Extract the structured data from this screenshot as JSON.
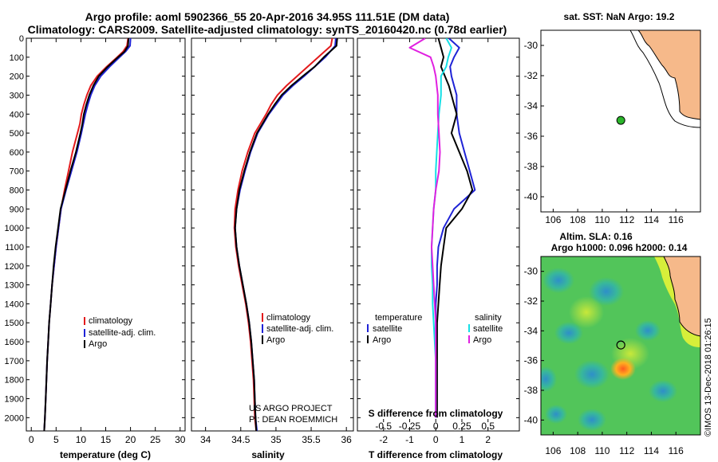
{
  "header": {
    "title_line1": "Argo profile: aoml 5902366_55 20-Apr-2016 34.95S 111.51E (DM data)",
    "title_line2": "Climatology: CARS2009. Satellite-adjusted climatology: synTS_20160420.nc (0.78d earlier)"
  },
  "credits": {
    "project": "US ARGO PROJECT",
    "pi": "PI: DEAN ROEMMICH",
    "stamp": "©IMOS 13-Dec-2018 01:26:15"
  },
  "colors": {
    "climatology": "#e31a1c",
    "satellite": "#1f23d6",
    "argo": "#000000",
    "sal_satellite": "#16e0e6",
    "sal_argo": "#e020e0",
    "land": "#f6b98a",
    "float_marker": "#2bb52b"
  },
  "chart_data": [
    {
      "id": "temperature",
      "type": "line",
      "xlabel": "temperature (deg C)",
      "ylabel": "",
      "xlim": [
        -1,
        31
      ],
      "ylim": [
        2070,
        0
      ],
      "xticks": [
        "0",
        "5",
        "10",
        "15",
        "20",
        "25",
        "30"
      ],
      "yticks": [
        "0",
        "100",
        "200",
        "300",
        "400",
        "500",
        "600",
        "700",
        "800",
        "900",
        "1000",
        "1100",
        "1200",
        "1300",
        "1400",
        "1500",
        "1600",
        "1700",
        "1800",
        "1900",
        "2000"
      ],
      "legend": [
        "climatology",
        "satellite-adj. clim.",
        "Argo"
      ],
      "legend_position": "lower-right",
      "series": [
        {
          "name": "climatology",
          "color": "#e31a1c",
          "x": [
            19.5,
            19.3,
            18.5,
            17.3,
            15.2,
            13.3,
            12.0,
            11.2,
            10.6,
            10.1,
            9.8,
            9.3,
            8.3,
            7.5,
            6.7,
            6.0,
            5.5,
            5.0,
            4.6,
            4.2,
            3.9,
            3.6,
            3.4,
            3.2,
            3.05,
            2.9,
            2.75,
            2.6
          ],
          "y": [
            0,
            40,
            70,
            100,
            150,
            200,
            250,
            300,
            350,
            400,
            450,
            500,
            600,
            700,
            800,
            900,
            1000,
            1100,
            1200,
            1300,
            1400,
            1500,
            1600,
            1700,
            1800,
            1900,
            2000,
            2070
          ]
        },
        {
          "name": "satellite-adj. clim.",
          "color": "#1f23d6",
          "x": [
            20.0,
            19.9,
            19.0,
            17.8,
            15.8,
            14.0,
            12.8,
            12.0,
            11.4,
            10.9,
            10.5,
            10.1,
            9.2,
            8.1,
            7.0,
            6.0,
            5.5,
            5.0,
            4.6,
            4.2,
            3.9,
            3.6,
            3.4,
            3.2,
            3.05,
            2.9,
            2.75,
            2.6
          ],
          "y": [
            0,
            40,
            70,
            100,
            150,
            200,
            250,
            300,
            350,
            400,
            450,
            500,
            600,
            700,
            800,
            900,
            1000,
            1100,
            1200,
            1300,
            1400,
            1500,
            1600,
            1700,
            1800,
            1900,
            2000,
            2070
          ]
        },
        {
          "name": "Argo",
          "color": "#000000",
          "x": [
            19.6,
            19.5,
            18.8,
            17.5,
            15.4,
            13.6,
            12.5,
            11.7,
            11.1,
            10.6,
            10.3,
            9.9,
            9.0,
            7.9,
            6.9,
            5.9,
            5.4,
            4.9,
            4.5,
            4.2,
            3.9,
            3.6,
            3.4,
            3.2,
            3.05,
            2.9,
            2.75,
            2.6
          ],
          "y": [
            0,
            40,
            70,
            100,
            150,
            200,
            250,
            300,
            350,
            400,
            450,
            500,
            600,
            700,
            800,
            900,
            1000,
            1100,
            1200,
            1300,
            1400,
            1500,
            1600,
            1700,
            1800,
            1900,
            2000,
            2070
          ]
        }
      ]
    },
    {
      "id": "salinity",
      "type": "line",
      "xlabel": "salinity",
      "xlim": [
        33.8,
        36.1
      ],
      "ylim": [
        2070,
        0
      ],
      "xticks": [
        "34",
        "34.5",
        "35",
        "35.5",
        "36"
      ],
      "legend": [
        "climatology",
        "satellite-adj. clim.",
        "Argo"
      ],
      "legend_position": "lower-right",
      "series": [
        {
          "name": "climatology",
          "color": "#e31a1c",
          "x": [
            35.8,
            35.78,
            35.6,
            35.45,
            35.3,
            35.15,
            35.02,
            34.93,
            34.86,
            34.78,
            34.7,
            34.6,
            34.52,
            34.46,
            34.42,
            34.41,
            34.43,
            34.47,
            34.52,
            34.57,
            34.61,
            34.64,
            34.66,
            34.68,
            34.69,
            34.7,
            34.72
          ],
          "y": [
            0,
            40,
            100,
            150,
            200,
            250,
            300,
            350,
            400,
            450,
            500,
            600,
            700,
            800,
            900,
            1000,
            1100,
            1200,
            1300,
            1400,
            1500,
            1600,
            1700,
            1800,
            1900,
            2000,
            2070
          ]
        },
        {
          "name": "satellite-adj. clim.",
          "color": "#1f23d6",
          "x": [
            35.85,
            35.84,
            35.7,
            35.55,
            35.4,
            35.24,
            35.1,
            35.0,
            34.9,
            34.82,
            34.74,
            34.64,
            34.56,
            34.49,
            34.44,
            34.42,
            34.44,
            34.48,
            34.53,
            34.58,
            34.62,
            34.65,
            34.67,
            34.69,
            34.7,
            34.71,
            34.73
          ],
          "y": [
            0,
            40,
            100,
            150,
            200,
            250,
            300,
            350,
            400,
            450,
            500,
            600,
            700,
            800,
            900,
            1000,
            1100,
            1200,
            1300,
            1400,
            1500,
            1600,
            1700,
            1800,
            1900,
            2000,
            2070
          ]
        },
        {
          "name": "Argo",
          "color": "#000000",
          "x": [
            35.87,
            35.86,
            35.68,
            35.55,
            35.38,
            35.22,
            35.08,
            34.98,
            34.89,
            34.81,
            34.73,
            34.63,
            34.55,
            34.48,
            34.44,
            34.42,
            34.44,
            34.48,
            34.53,
            34.58,
            34.62,
            34.65,
            34.67,
            34.69,
            34.7,
            34.71,
            34.72
          ],
          "y": [
            0,
            40,
            100,
            150,
            200,
            250,
            300,
            350,
            400,
            450,
            500,
            600,
            700,
            800,
            900,
            1000,
            1100,
            1200,
            1300,
            1400,
            1500,
            1600,
            1700,
            1800,
            1900,
            2000,
            2070
          ]
        }
      ]
    },
    {
      "id": "difference",
      "type": "line",
      "xlabel": "T difference from climatology",
      "xlabel_top": "S difference from climatology",
      "xlim": [
        -3,
        3.2
      ],
      "ylim": [
        2070,
        0
      ],
      "xticks": [
        "-2",
        "-1",
        "0",
        "1",
        "2"
      ],
      "xticks_top": [
        "-0.5",
        "-0.25",
        "0",
        "0.25",
        "0.5"
      ],
      "legend_temperature": {
        "heading": "temperature",
        "items": [
          "satellite",
          "Argo"
        ]
      },
      "legend_salinity": {
        "heading": "salinity",
        "items": [
          "satellite",
          "Argo"
        ]
      },
      "series": [
        {
          "name": "temperature satellite",
          "color": "#1f23d6",
          "x": [
            0.5,
            0.9,
            0.7,
            0.55,
            0.6,
            0.7,
            0.8,
            0.8,
            0.9,
            1.1,
            1.3,
            1.5,
            0.7,
            0.3,
            0.1,
            0.05,
            0.05,
            0.0,
            0.0,
            0.0,
            0.0,
            0.0,
            0.0,
            0.0
          ],
          "y": [
            0,
            50,
            100,
            150,
            200,
            250,
            300,
            400,
            500,
            600,
            700,
            800,
            900,
            1000,
            1100,
            1200,
            1300,
            1400,
            1500,
            1600,
            1700,
            1800,
            1900,
            2000
          ]
        },
        {
          "name": "temperature Argo",
          "color": "#000000",
          "x": [
            0.1,
            0.2,
            0.3,
            0.2,
            0.35,
            0.5,
            0.6,
            0.8,
            0.6,
            0.9,
            1.2,
            1.4,
            1.0,
            0.4,
            0.3,
            0.2,
            0.15,
            0.1,
            0.05,
            0.05,
            0.05,
            0.05,
            0.05,
            0.05
          ],
          "y": [
            0,
            50,
            100,
            150,
            200,
            250,
            300,
            400,
            500,
            600,
            700,
            800,
            900,
            1000,
            1100,
            1200,
            1300,
            1400,
            1500,
            1600,
            1700,
            1800,
            1900,
            2000
          ]
        },
        {
          "name": "salinity satellite",
          "color": "#16e0e6",
          "x": [
            0.1,
            0.15,
            0.12,
            0.1,
            0.05,
            0.05,
            0.03,
            0.02,
            0.01,
            0.0,
            0.0,
            -0.02,
            -0.03,
            -0.04,
            -0.04,
            -0.03,
            -0.03,
            -0.02,
            -0.01,
            0.0,
            0.0,
            0.0,
            0.0
          ],
          "y": [
            0,
            50,
            100,
            150,
            200,
            300,
            400,
            500,
            600,
            700,
            800,
            900,
            1000,
            1100,
            1200,
            1300,
            1400,
            1500,
            1600,
            1700,
            1800,
            1900,
            2000
          ]
        },
        {
          "name": "salinity Argo",
          "color": "#e020e0",
          "x": [
            -0.1,
            -0.25,
            -0.05,
            -0.02,
            0.0,
            0.02,
            0.02,
            0.03,
            0.04,
            0.03,
            0.0,
            -0.02,
            -0.03,
            -0.04,
            -0.03,
            -0.02,
            -0.01,
            0.0,
            0.0,
            0.0,
            0.0,
            0.0,
            0.0
          ],
          "y": [
            0,
            50,
            100,
            150,
            200,
            300,
            400,
            500,
            600,
            700,
            800,
            900,
            1000,
            1100,
            1200,
            1300,
            1400,
            1500,
            1600,
            1700,
            1800,
            1900,
            2000
          ]
        }
      ]
    },
    {
      "id": "sst_map",
      "type": "map",
      "title": "sat. SST: NaN Argo: 19.2",
      "xlim": [
        105,
        118
      ],
      "ylim": [
        -41,
        -29
      ],
      "xticks": [
        "106",
        "108",
        "110",
        "112",
        "114",
        "116"
      ],
      "yticks": [
        "-30",
        "-32",
        "-34",
        "-36",
        "-38",
        "-40"
      ],
      "float_position": {
        "lon": 111.51,
        "lat": -34.95
      }
    },
    {
      "id": "sla_map",
      "type": "heatmap",
      "title_line1": "Altim. SLA: 0.16",
      "title_line2": "Argo h1000: 0.096 h2000: 0.14",
      "xlim": [
        105,
        118
      ],
      "ylim": [
        -41,
        -29
      ],
      "xticks": [
        "106",
        "108",
        "110",
        "112",
        "114",
        "116"
      ],
      "yticks": [
        "-30",
        "-32",
        "-34",
        "-36",
        "-38",
        "-40"
      ],
      "float_position": {
        "lon": 111.51,
        "lat": -34.95
      }
    }
  ]
}
